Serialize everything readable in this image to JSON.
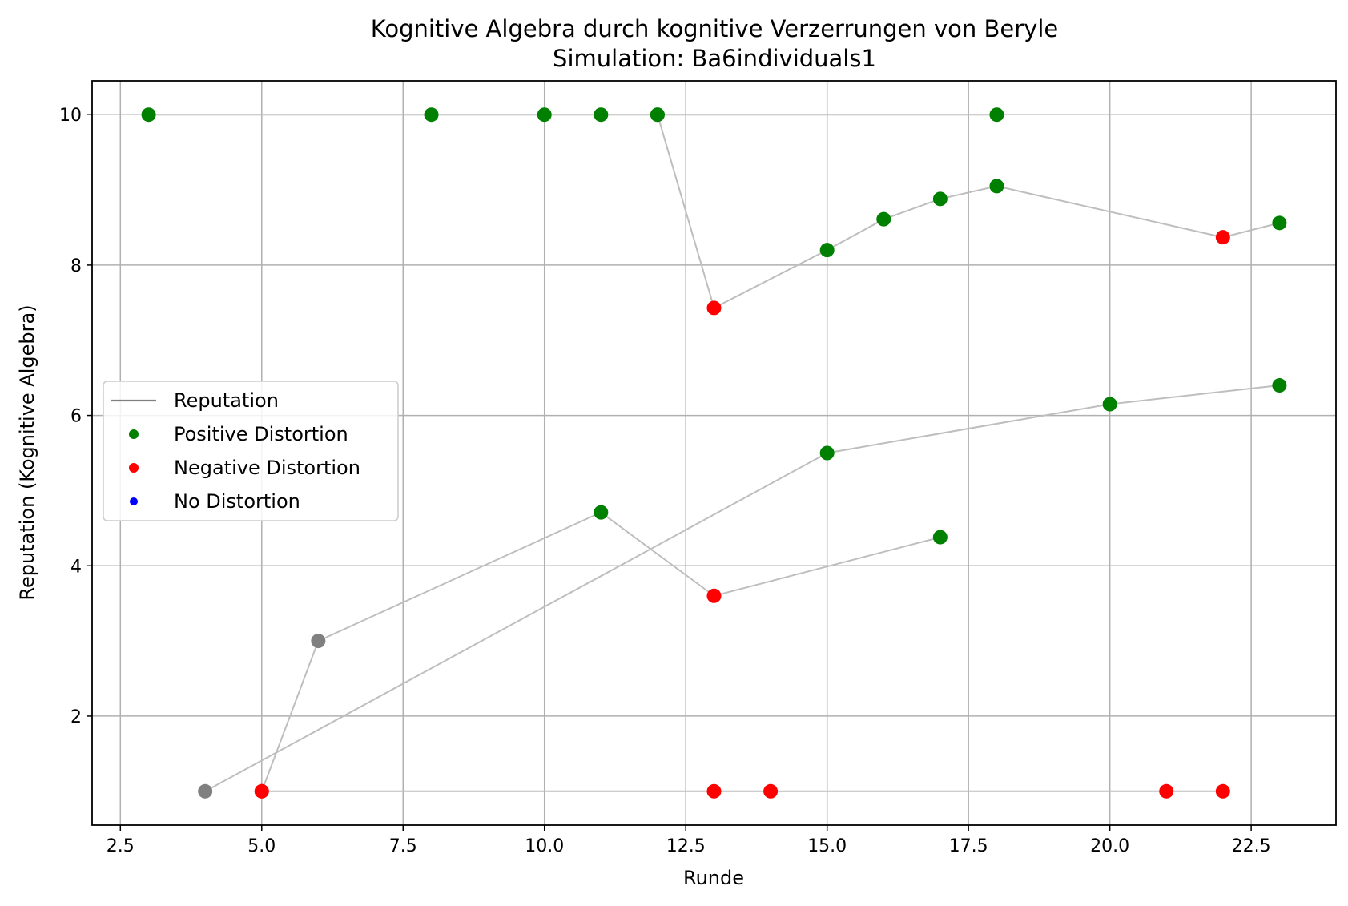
{
  "chart_data": {
    "type": "scatter",
    "title": "Kognitive Algebra durch kognitive Verzerrungen von Beryle",
    "subtitle": "Simulation: Ba6individuals1",
    "xlabel": "Runde",
    "ylabel": "Reputation (Kognitive Algebra)",
    "xlim": [
      2.0,
      24.0
    ],
    "ylim": [
      0.55,
      10.45
    ],
    "x_ticks": [
      2.5,
      5.0,
      7.5,
      10.0,
      12.5,
      15.0,
      17.5,
      20.0,
      22.5
    ],
    "x_tick_labels": [
      "2.5",
      "5.0",
      "7.5",
      "10.0",
      "12.5",
      "15.0",
      "17.5",
      "20.0",
      "22.5"
    ],
    "y_ticks": [
      2,
      4,
      6,
      8,
      10
    ],
    "y_tick_labels": [
      "2",
      "4",
      "6",
      "8",
      "10"
    ],
    "grid": true,
    "legend_position": "center-left",
    "legend": [
      {
        "label": "Reputation",
        "marker": "line",
        "color": "#808080"
      },
      {
        "label": "Positive Distortion",
        "marker": "dot",
        "color": "#008000"
      },
      {
        "label": "Negative Distortion",
        "marker": "dot",
        "color": "#ff0000"
      },
      {
        "label": "No Distortion",
        "marker": "dot",
        "color": "#0000ff"
      }
    ],
    "status_colors": {
      "positive": "#008000",
      "negative": "#ff0000",
      "none": "#808080"
    },
    "line_color": "#bebebe",
    "series": [
      {
        "points": [
          {
            "x": 3,
            "y": 10,
            "status": "positive"
          },
          {
            "x": 8,
            "y": 10,
            "status": "positive"
          },
          {
            "x": 10,
            "y": 10,
            "status": "positive"
          },
          {
            "x": 11,
            "y": 10,
            "status": "positive"
          },
          {
            "x": 12,
            "y": 10,
            "status": "positive"
          },
          {
            "x": 18,
            "y": 10,
            "status": "positive"
          }
        ]
      },
      {
        "points": [
          {
            "x": 12,
            "y": 10,
            "status": "positive"
          },
          {
            "x": 13,
            "y": 7.43,
            "status": "negative"
          },
          {
            "x": 15,
            "y": 8.2,
            "status": "positive"
          },
          {
            "x": 16,
            "y": 8.61,
            "status": "positive"
          },
          {
            "x": 17,
            "y": 8.88,
            "status": "positive"
          },
          {
            "x": 18,
            "y": 9.05,
            "status": "positive"
          },
          {
            "x": 22,
            "y": 8.37,
            "status": "negative"
          },
          {
            "x": 23,
            "y": 8.56,
            "status": "positive"
          }
        ]
      },
      {
        "points": [
          {
            "x": 4,
            "y": 1,
            "status": "none"
          },
          {
            "x": 15,
            "y": 5.5,
            "status": "positive"
          },
          {
            "x": 20,
            "y": 6.15,
            "status": "positive"
          },
          {
            "x": 23,
            "y": 6.4,
            "status": "positive"
          }
        ]
      },
      {
        "points": [
          {
            "x": 5,
            "y": 1,
            "status": "negative"
          },
          {
            "x": 6,
            "y": 3,
            "status": "none"
          },
          {
            "x": 11,
            "y": 4.71,
            "status": "positive"
          },
          {
            "x": 13,
            "y": 3.6,
            "status": "negative"
          },
          {
            "x": 17,
            "y": 4.38,
            "status": "positive"
          }
        ]
      },
      {
        "points": [
          {
            "x": 5,
            "y": 1,
            "status": "negative"
          },
          {
            "x": 13,
            "y": 1,
            "status": "negative"
          },
          {
            "x": 14,
            "y": 1,
            "status": "negative"
          },
          {
            "x": 21,
            "y": 1,
            "status": "negative"
          },
          {
            "x": 22,
            "y": 1,
            "status": "negative"
          }
        ]
      }
    ]
  }
}
